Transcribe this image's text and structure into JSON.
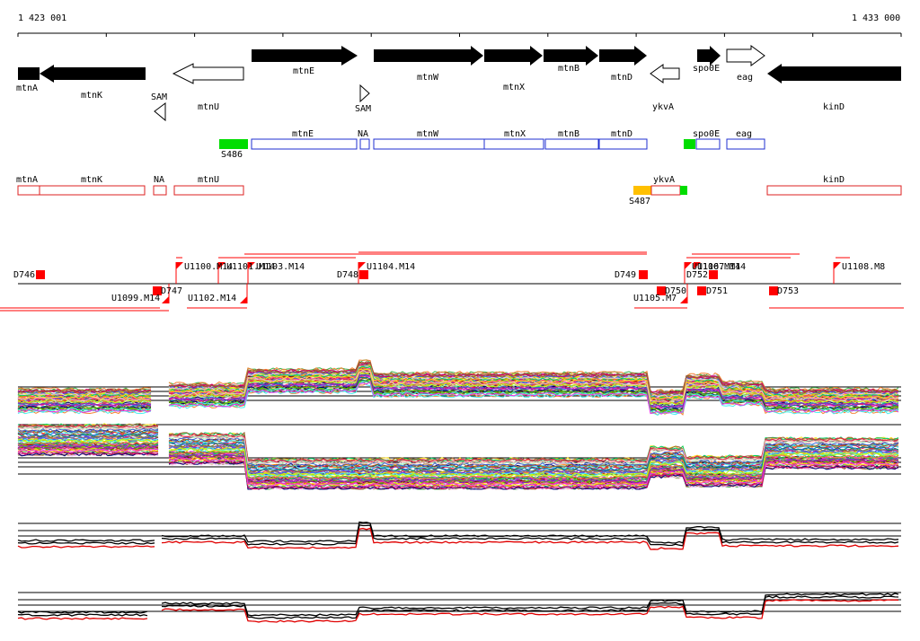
{
  "ruler": {
    "start_label": "1 423 001",
    "end_label": "1 433 000"
  },
  "genes": [
    {
      "label": "mtnA",
      "strand": "+",
      "filled": true
    },
    {
      "label": "mtnK",
      "strand": "-",
      "filled": true
    },
    {
      "label": "mtnU",
      "strand": "-",
      "filled": false
    },
    {
      "label": "SAM",
      "strand": "-",
      "filled": false
    },
    {
      "label": "mtnE",
      "strand": "+",
      "filled": true
    },
    {
      "label": "SAM",
      "strand": "+",
      "filled": false
    },
    {
      "label": "mtnW",
      "strand": "+",
      "filled": true
    },
    {
      "label": "mtnX",
      "strand": "+",
      "filled": true
    },
    {
      "label": "mtnB",
      "strand": "+",
      "filled": true
    },
    {
      "label": "mtnD",
      "strand": "+",
      "filled": true
    },
    {
      "label": "ykvA",
      "strand": "-",
      "filled": false
    },
    {
      "label": "spo0E",
      "strand": "+",
      "filled": true
    },
    {
      "label": "eag",
      "strand": "+",
      "filled": false
    },
    {
      "label": "kinD",
      "strand": "-",
      "filled": true
    }
  ],
  "plus_segments": [
    {
      "label": "S486",
      "kind": "green"
    },
    {
      "label": "mtnE"
    },
    {
      "label": "NA"
    },
    {
      "label": "mtnW"
    },
    {
      "label": "mtnX"
    },
    {
      "label": "mtnB"
    },
    {
      "label": "mtnD"
    },
    {
      "label": "",
      "kind": "green"
    },
    {
      "label": "spo0E"
    },
    {
      "label": "eag"
    }
  ],
  "minus_segments": [
    {
      "label": "mtnA"
    },
    {
      "label": "mtnK"
    },
    {
      "label": "NA"
    },
    {
      "label": "mtnU"
    },
    {
      "label": "S487",
      "kind": "orange"
    },
    {
      "label": "ykvA"
    },
    {
      "label": "",
      "kind": "green"
    },
    {
      "label": "kinD"
    }
  ],
  "features_top": [
    "D746",
    "U1100.M14",
    "U1101.M14",
    "U1103.M14",
    "D748",
    "U1104.M14",
    "D749",
    "D752",
    "U1106.M14",
    "U1107.M14",
    "U1108.M8"
  ],
  "features_bottom": [
    "U1099.M14",
    "D747",
    "U1102.M14",
    "D750",
    "U1105.M7",
    "D751",
    "D753"
  ],
  "colors": {
    "gene_fill": "#000000",
    "plus_box": "#1f2fd0",
    "minus_box": "#dd2020",
    "green": "#00dd00",
    "orange": "#ffc000",
    "feature": "#ff0000"
  }
}
